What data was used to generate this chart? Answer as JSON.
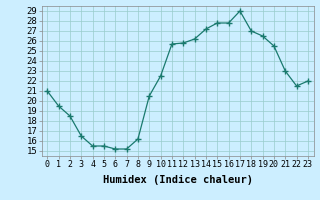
{
  "x": [
    0,
    1,
    2,
    3,
    4,
    5,
    6,
    7,
    8,
    9,
    10,
    11,
    12,
    13,
    14,
    15,
    16,
    17,
    18,
    19,
    20,
    21,
    22,
    23
  ],
  "y": [
    21.0,
    19.5,
    18.5,
    16.5,
    15.5,
    15.5,
    15.2,
    15.2,
    16.2,
    20.5,
    22.5,
    25.7,
    25.8,
    26.2,
    27.2,
    27.8,
    27.8,
    29.0,
    27.0,
    26.5,
    25.5,
    23.0,
    21.5,
    22.0
  ],
  "line_color": "#1a7a6e",
  "marker_color": "#1a7a6e",
  "bg_color": "#cceeff",
  "grid_color": "#99cccc",
  "xlabel": "Humidex (Indice chaleur)",
  "xlim": [
    -0.5,
    23.5
  ],
  "ylim": [
    14.5,
    29.5
  ],
  "yticks": [
    15,
    16,
    17,
    18,
    19,
    20,
    21,
    22,
    23,
    24,
    25,
    26,
    27,
    28,
    29
  ],
  "xtick_labels": [
    "0",
    "1",
    "2",
    "3",
    "4",
    "5",
    "6",
    "7",
    "8",
    "9",
    "10",
    "11",
    "12",
    "13",
    "14",
    "15",
    "16",
    "17",
    "18",
    "19",
    "20",
    "21",
    "22",
    "23"
  ],
  "tick_fontsize": 6.5,
  "label_fontsize": 7.5
}
